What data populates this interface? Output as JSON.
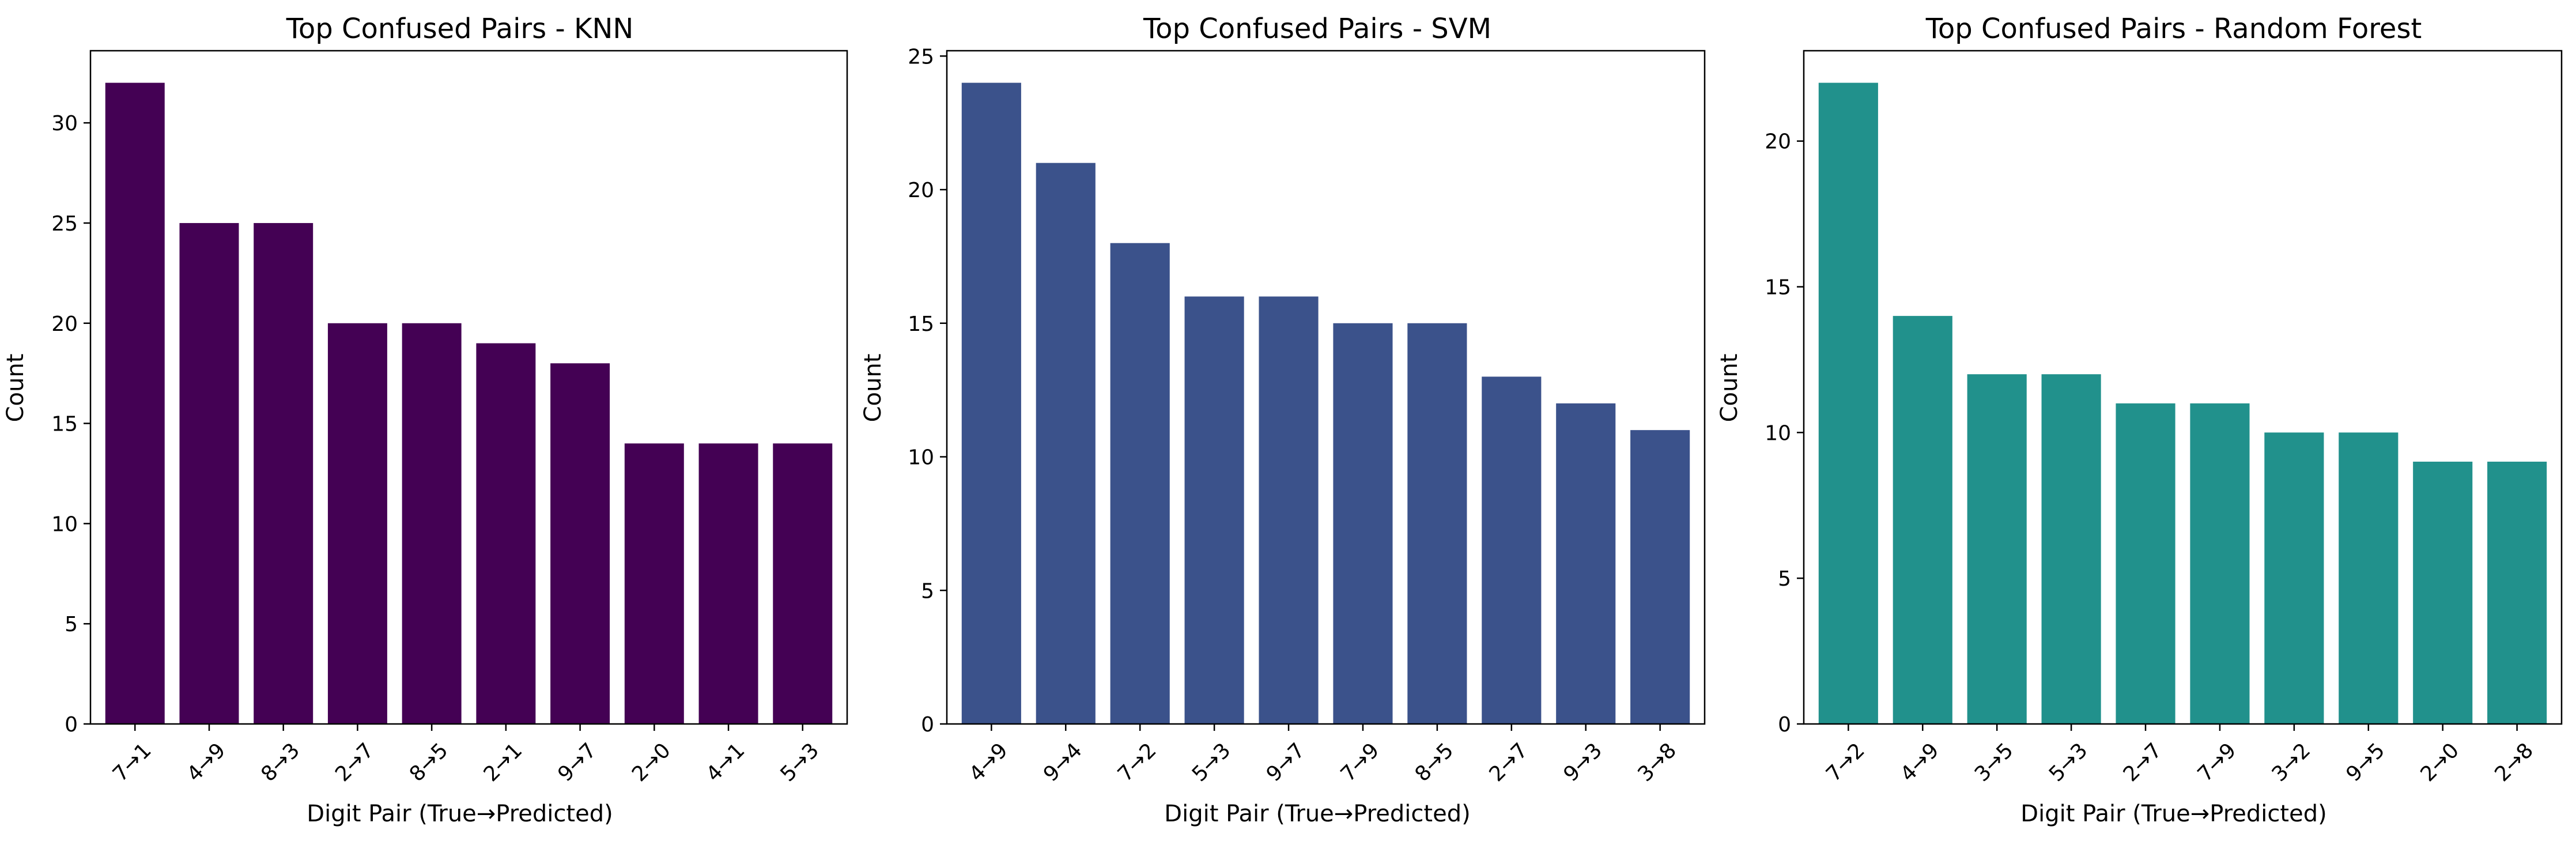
{
  "chart_data": [
    {
      "type": "bar",
      "title": "Top Confused Pairs - KNN",
      "xlabel": "Digit Pair (True→Predicted)",
      "ylabel": "Count",
      "categories": [
        "7→1",
        "4→9",
        "8→3",
        "2→7",
        "8→5",
        "2→1",
        "9→7",
        "2→0",
        "4→1",
        "5→3"
      ],
      "values": [
        32,
        25,
        25,
        20,
        20,
        19,
        18,
        14,
        14,
        14
      ],
      "ylim": [
        0,
        33.6
      ],
      "yticks": [
        0,
        5,
        10,
        15,
        20,
        25,
        30
      ],
      "color": "#440154",
      "grid": false
    },
    {
      "type": "bar",
      "title": "Top Confused Pairs - SVM",
      "xlabel": "Digit Pair (True→Predicted)",
      "ylabel": "Count",
      "categories": [
        "4→9",
        "9→4",
        "7→2",
        "5→3",
        "9→7",
        "7→9",
        "8→5",
        "2→7",
        "9→3",
        "3→8"
      ],
      "values": [
        24,
        21,
        18,
        16,
        16,
        15,
        15,
        13,
        12,
        11
      ],
      "ylim": [
        0,
        25.2
      ],
      "yticks": [
        0,
        5,
        10,
        15,
        20,
        25
      ],
      "color": "#3b528b",
      "grid": false
    },
    {
      "type": "bar",
      "title": "Top Confused Pairs - Random Forest",
      "xlabel": "Digit Pair (True→Predicted)",
      "ylabel": "Count",
      "categories": [
        "7→2",
        "4→9",
        "3→5",
        "5→3",
        "2→7",
        "7→9",
        "3→2",
        "9→5",
        "2→0",
        "2→8"
      ],
      "values": [
        22,
        14,
        12,
        12,
        11,
        11,
        10,
        10,
        9,
        9
      ],
      "ylim": [
        0,
        23.1
      ],
      "yticks": [
        0,
        5,
        10,
        15,
        20
      ],
      "color": "#21918c",
      "grid": false
    }
  ]
}
